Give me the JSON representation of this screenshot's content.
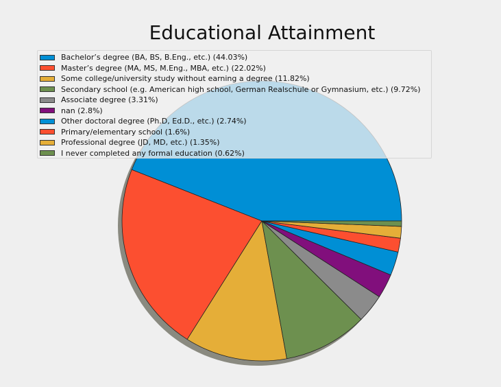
{
  "chart_data": {
    "type": "pie",
    "title": "Educational Attainment",
    "legend_position": "top-left",
    "slices": [
      {
        "label": "Bachelor’s degree (BA, BS, B.Eng., etc.) (44.03%)",
        "value": 44.03,
        "color": "#008fd5"
      },
      {
        "label": "Master’s degree (MA, MS, M.Eng., MBA, etc.) (22.02%)",
        "value": 22.02,
        "color": "#fc4f30"
      },
      {
        "label": "Some college/university study without earning a degree (11.82%)",
        "value": 11.82,
        "color": "#e5ae38"
      },
      {
        "label": "Secondary school (e.g. American high school, German Realschule or Gymnasium, etc.) (9.72%)",
        "value": 9.72,
        "color": "#6d904f"
      },
      {
        "label": "Associate degree (3.31%)",
        "value": 3.31,
        "color": "#8b8b8b"
      },
      {
        "label": "nan (2.8%)",
        "value": 2.8,
        "color": "#810f7c"
      },
      {
        "label": "Other doctoral degree (Ph.D, Ed.D., etc.) (2.74%)",
        "value": 2.74,
        "color": "#008fd5"
      },
      {
        "label": "Primary/elementary school (1.6%)",
        "value": 1.6,
        "color": "#fc4f30"
      },
      {
        "label": "Professional degree (JD, MD, etc.) (1.35%)",
        "value": 1.35,
        "color": "#e5ae38"
      },
      {
        "label": "I never completed any formal education (0.62%)",
        "value": 0.62,
        "color": "#6d904f"
      }
    ]
  }
}
